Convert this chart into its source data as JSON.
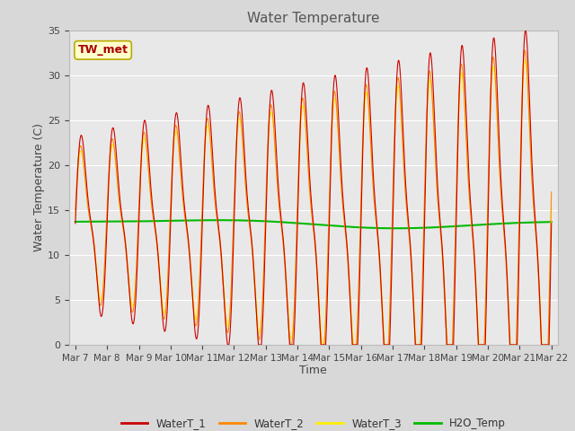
{
  "title": "Water Temperature",
  "xlabel": "Time",
  "ylabel": "Water Temperature (C)",
  "annotation_text": "TW_met",
  "annotation_color": "#aa0000",
  "annotation_bg": "#ffffcc",
  "annotation_border": "#bbaa00",
  "ylim": [
    0,
    35
  ],
  "yticks": [
    0,
    5,
    10,
    15,
    20,
    25,
    30,
    35
  ],
  "colors": {
    "WaterT_1": "#cc0000",
    "WaterT_2": "#ff8800",
    "WaterT_3": "#ffee00",
    "H2O_Temp": "#00bb00"
  },
  "fig_bg": "#d8d8d8",
  "axes_bg": "#e8e8e8",
  "grid_color": "#ffffff",
  "n_points": 3000,
  "n_days": 15
}
